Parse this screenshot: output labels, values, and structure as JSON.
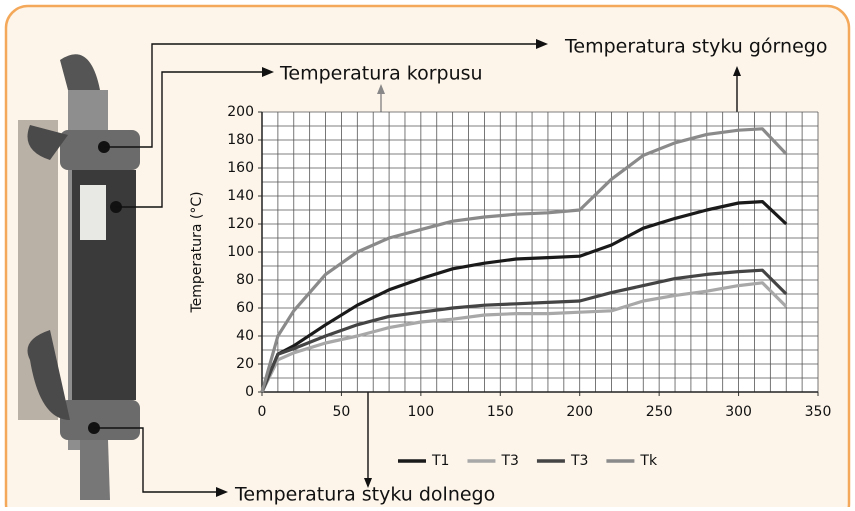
{
  "chart_data": {
    "type": "line",
    "ylabel": "Temperatura (°C)",
    "annotations": [
      "Temperatura styku górnego",
      "Temperatura korpusu",
      "Temperatura styku dolnego"
    ],
    "x": [
      0,
      10,
      20,
      40,
      60,
      80,
      100,
      120,
      140,
      160,
      180,
      200,
      220,
      240,
      260,
      280,
      300,
      315,
      330
    ],
    "series": [
      {
        "name": "T1",
        "color": "#1a1a1a",
        "values": [
          0,
          27,
          33,
          48,
          62,
          73,
          81,
          88,
          92,
          95,
          96,
          97,
          105,
          117,
          124,
          130,
          135,
          136,
          120
        ]
      },
      {
        "name": "T3",
        "color": "#a8a8a8",
        "values": [
          0,
          23,
          28,
          35,
          40,
          46,
          50,
          52,
          55,
          56,
          56,
          57,
          58,
          65,
          69,
          72,
          76,
          78,
          61
        ]
      },
      {
        "name": "T3",
        "color": "#444444",
        "values": [
          0,
          27,
          31,
          40,
          48,
          54,
          57,
          60,
          62,
          63,
          64,
          65,
          71,
          76,
          81,
          84,
          86,
          87,
          70
        ]
      },
      {
        "name": "Tk",
        "color": "#8a8a8a",
        "values": [
          0,
          40,
          58,
          84,
          100,
          110,
          116,
          122,
          125,
          127,
          128,
          130,
          152,
          169,
          178,
          184,
          187,
          188,
          170
        ]
      }
    ],
    "xlim": [
      0,
      350
    ],
    "xticks": [
      0,
      50,
      100,
      150,
      200,
      250,
      300,
      350
    ],
    "ylim": [
      0,
      200
    ],
    "yticks": [
      0,
      20,
      40,
      60,
      80,
      100,
      120,
      140,
      160,
      180,
      200
    ],
    "xgrid": [
      0,
      10,
      20,
      30,
      40,
      50,
      60,
      70,
      80,
      90,
      100,
      110,
      120,
      130,
      140,
      150,
      160,
      170,
      180,
      190,
      200,
      210,
      220,
      230,
      240,
      250,
      260,
      270,
      280,
      290,
      300,
      310,
      320,
      330,
      340,
      350
    ],
    "ygrid": [
      0,
      10,
      20,
      30,
      40,
      50,
      60,
      70,
      80,
      90,
      100,
      110,
      120,
      130,
      140,
      150,
      160,
      170,
      180,
      190,
      200
    ],
    "legend": "bottom"
  }
}
